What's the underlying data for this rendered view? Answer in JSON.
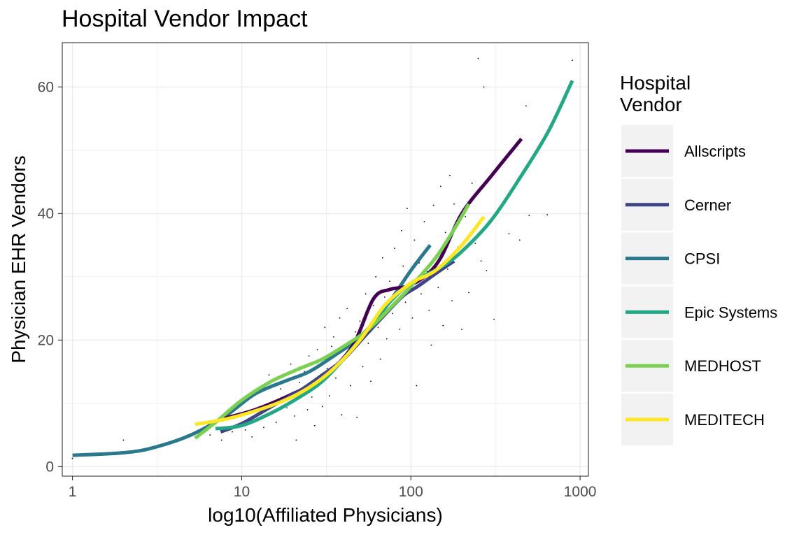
{
  "chart_data": {
    "type": "line",
    "title": "Hospital Vendor Impact",
    "xlabel": "log10(Affiliated Physicians)",
    "ylabel": "Physician EHR Vendors",
    "x_scale": "log10",
    "xlim": [
      0.87,
      1120
    ],
    "ylim": [
      -1.5,
      67
    ],
    "x_ticks": [
      1,
      10,
      100,
      1000
    ],
    "x_tick_labels": [
      "1",
      "10",
      "100",
      "1000"
    ],
    "y_ticks": [
      0,
      20,
      40,
      60
    ],
    "y_tick_labels": [
      "0",
      "20",
      "40",
      "60"
    ],
    "grid": true,
    "legend": {
      "title_lines": [
        "Hospital",
        "Vendor"
      ],
      "placement": "right"
    },
    "series": [
      {
        "name": "Allscripts",
        "color": "#440154",
        "x": [
          7.5,
          12,
          20,
          30,
          45,
          60,
          75,
          95,
          120,
          150,
          200,
          300,
          450
        ],
        "y": [
          7.5,
          9.0,
          11.5,
          14.0,
          19.0,
          26.5,
          28.0,
          28.5,
          30.0,
          33.0,
          40.0,
          46.0,
          51.8
        ]
      },
      {
        "name": "Cerner",
        "color": "#414487",
        "x": [
          7.5,
          10,
          15,
          22,
          30,
          40,
          55,
          70,
          90,
          110,
          140,
          180
        ],
        "y": [
          5.5,
          6.8,
          9.5,
          12.0,
          14.5,
          17.0,
          21.0,
          24.0,
          27.0,
          28.5,
          30.5,
          32.5
        ]
      },
      {
        "name": "CPSI",
        "color": "#2A788E",
        "x": [
          1,
          2,
          3,
          5,
          8,
          12,
          18,
          25,
          35,
          50,
          70,
          100,
          130
        ],
        "y": [
          1.8,
          2.2,
          3.0,
          5.0,
          8.0,
          11.5,
          13.5,
          15.0,
          17.5,
          20.5,
          25.0,
          31.0,
          35.0
        ]
      },
      {
        "name": "Epic Systems",
        "color": "#22A884",
        "x": [
          7,
          10,
          15,
          22,
          30,
          40,
          55,
          75,
          100,
          150,
          200,
          300,
          450,
          650,
          900
        ],
        "y": [
          6.0,
          6.5,
          8.5,
          11.0,
          13.5,
          17.0,
          21.5,
          26.0,
          29.0,
          31.5,
          34.0,
          39.0,
          46.0,
          53.0,
          61.0
        ]
      },
      {
        "name": "MEDHOST",
        "color": "#7AD151",
        "x": [
          5.3,
          7,
          10,
          15,
          22,
          30,
          40,
          55,
          75,
          100,
          140,
          180,
          220
        ],
        "y": [
          4.5,
          7.0,
          10.5,
          13.5,
          15.5,
          17.0,
          19.0,
          21.5,
          25.0,
          28.5,
          33.0,
          37.5,
          41.5
        ]
      },
      {
        "name": "MEDITECH",
        "color": "#FDE725",
        "x": [
          5.3,
          8,
          12,
          18,
          25,
          35,
          50,
          70,
          100,
          140,
          200,
          270
        ],
        "y": [
          6.7,
          7.5,
          8.8,
          10.5,
          12.5,
          15.5,
          20.0,
          25.5,
          29.0,
          31.0,
          35.0,
          39.5
        ]
      }
    ],
    "scatter": [
      [
        1.0,
        1.3
      ],
      [
        2.0,
        4.2
      ],
      [
        5.5,
        5.5
      ],
      [
        6.5,
        5.0
      ],
      [
        7.6,
        4.2
      ],
      [
        8.8,
        5.5
      ],
      [
        9.5,
        6.3
      ],
      [
        10.5,
        5.8
      ],
      [
        11.5,
        4.7
      ],
      [
        11.8,
        9.0
      ],
      [
        12.5,
        12.0
      ],
      [
        13.5,
        6.2
      ],
      [
        14.5,
        14.5
      ],
      [
        15.5,
        10.0
      ],
      [
        16.0,
        7.0
      ],
      [
        17.0,
        12.3
      ],
      [
        18.5,
        9.3
      ],
      [
        19.5,
        16.2
      ],
      [
        20.5,
        8.0
      ],
      [
        21.0,
        4.2
      ],
      [
        22.0,
        13.3
      ],
      [
        23.5,
        15.0
      ],
      [
        24.5,
        9.0
      ],
      [
        25.0,
        17.5
      ],
      [
        26.0,
        11.0
      ],
      [
        27.0,
        6.5
      ],
      [
        28.0,
        18.5
      ],
      [
        29.0,
        13.0
      ],
      [
        30.0,
        9.5
      ],
      [
        31.0,
        22.0
      ],
      [
        32.0,
        15.5
      ],
      [
        33.0,
        11.2
      ],
      [
        34.0,
        19.0
      ],
      [
        35.0,
        20.5
      ],
      [
        36.0,
        14.0
      ],
      [
        38.0,
        23.5
      ],
      [
        39.0,
        8.2
      ],
      [
        40.0,
        17.3
      ],
      [
        42.0,
        25.0
      ],
      [
        44.0,
        12.8
      ],
      [
        45.0,
        18.7
      ],
      [
        47.0,
        21.3
      ],
      [
        48.0,
        7.8
      ],
      [
        50.0,
        23.0
      ],
      [
        52.0,
        15.8
      ],
      [
        54.0,
        27.3
      ],
      [
        56.0,
        19.5
      ],
      [
        58.0,
        13.5
      ],
      [
        60.0,
        25.5
      ],
      [
        62.0,
        30.0
      ],
      [
        64.0,
        22.0
      ],
      [
        66.0,
        17.0
      ],
      [
        68.0,
        33.0
      ],
      [
        70.0,
        26.8
      ],
      [
        72.0,
        20.2
      ],
      [
        75.0,
        29.3
      ],
      [
        78.0,
        24.2
      ],
      [
        80.0,
        34.5
      ],
      [
        83.0,
        27.8
      ],
      [
        86.0,
        21.7
      ],
      [
        88.0,
        37.3
      ],
      [
        90.0,
        31.7
      ],
      [
        93.0,
        26.0
      ],
      [
        95.0,
        40.8
      ],
      [
        98.0,
        29.0
      ],
      [
        102.0,
        23.5
      ],
      [
        105.0,
        35.8
      ],
      [
        108.0,
        12.8
      ],
      [
        112.0,
        32.2
      ],
      [
        115.0,
        27.3
      ],
      [
        120.0,
        38.7
      ],
      [
        125.0,
        30.8
      ],
      [
        128.0,
        24.7
      ],
      [
        132.0,
        19.2
      ],
      [
        136.0,
        41.3
      ],
      [
        140.0,
        33.3
      ],
      [
        145.0,
        28.3
      ],
      [
        150.0,
        44.3
      ],
      [
        155.0,
        22.3
      ],
      [
        160.0,
        37.0
      ],
      [
        165.0,
        31.2
      ],
      [
        170.0,
        46.0
      ],
      [
        175.0,
        26.2
      ],
      [
        180.0,
        41.5
      ],
      [
        190.0,
        34.7
      ],
      [
        200.0,
        21.7
      ],
      [
        210.0,
        39.5
      ],
      [
        220.0,
        27.5
      ],
      [
        230.0,
        44.8
      ],
      [
        240.0,
        35.3
      ],
      [
        250.0,
        64.5
      ],
      [
        260.0,
        32.5
      ],
      [
        270.0,
        60.0
      ],
      [
        280.0,
        31.0
      ],
      [
        310.0,
        23.3
      ],
      [
        380.0,
        36.8
      ],
      [
        440.0,
        35.8
      ],
      [
        480.0,
        57.0
      ],
      [
        500.0,
        39.7
      ],
      [
        640.0,
        39.8
      ],
      [
        900.0,
        64.2
      ]
    ]
  }
}
